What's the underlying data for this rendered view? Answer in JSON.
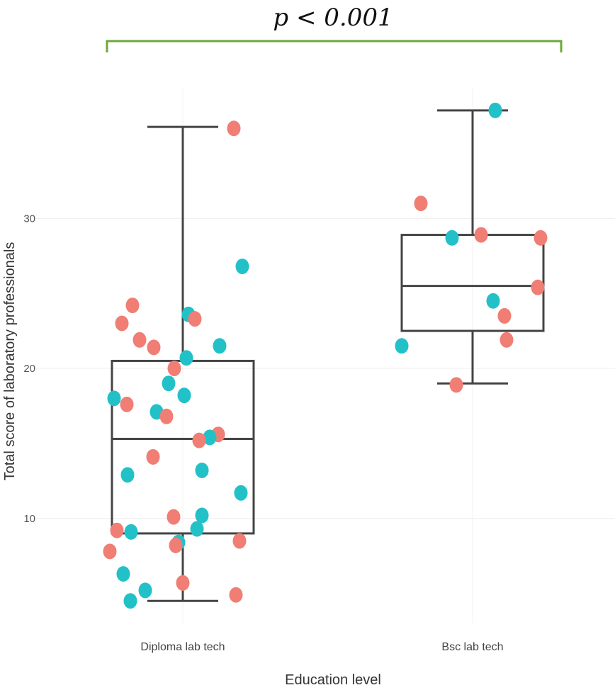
{
  "chart_data": {
    "type": "boxplot",
    "title": "",
    "xlabel": "Education level",
    "ylabel": "Total score of laboratory professionals",
    "ylim": [
      3,
      39.6
    ],
    "yticks": [
      10,
      20,
      30
    ],
    "grid": true,
    "significance": {
      "label": "p < 0.001",
      "color": "#6aaa3a"
    },
    "point_colors": {
      "red": "#f07e74",
      "teal": "#22c1c7"
    },
    "box_color": "#444444",
    "categories": [
      "Diploma lab tech",
      "Bsc lab tech"
    ],
    "boxes": [
      {
        "category": "Diploma lab tech",
        "whisker_low": 4.5,
        "q1": 9.0,
        "median": 15.3,
        "q3": 20.5,
        "whisker_high": 36.1
      },
      {
        "category": "Bsc lab tech",
        "whisker_low": 19.0,
        "q1": 22.5,
        "median": 25.5,
        "q3": 28.9,
        "whisker_high": 37.2
      }
    ],
    "points": [
      {
        "category": "Diploma lab tech",
        "offset": 0.72,
        "y": 36.0,
        "color": "red"
      },
      {
        "category": "Diploma lab tech",
        "offset": 0.84,
        "y": 26.8,
        "color": "teal"
      },
      {
        "category": "Diploma lab tech",
        "offset": -0.71,
        "y": 24.2,
        "color": "red"
      },
      {
        "category": "Diploma lab tech",
        "offset": -0.86,
        "y": 23.0,
        "color": "red"
      },
      {
        "category": "Diploma lab tech",
        "offset": 0.08,
        "y": 23.6,
        "color": "teal"
      },
      {
        "category": "Diploma lab tech",
        "offset": 0.17,
        "y": 23.3,
        "color": "red"
      },
      {
        "category": "Diploma lab tech",
        "offset": -0.61,
        "y": 21.9,
        "color": "red"
      },
      {
        "category": "Diploma lab tech",
        "offset": -0.41,
        "y": 21.4,
        "color": "red"
      },
      {
        "category": "Diploma lab tech",
        "offset": 0.52,
        "y": 21.5,
        "color": "teal"
      },
      {
        "category": "Diploma lab tech",
        "offset": 0.05,
        "y": 20.7,
        "color": "teal"
      },
      {
        "category": "Diploma lab tech",
        "offset": -0.12,
        "y": 20.0,
        "color": "red"
      },
      {
        "category": "Diploma lab tech",
        "offset": -0.2,
        "y": 19.0,
        "color": "teal"
      },
      {
        "category": "Diploma lab tech",
        "offset": 0.02,
        "y": 18.2,
        "color": "teal"
      },
      {
        "category": "Diploma lab tech",
        "offset": -0.97,
        "y": 18.0,
        "color": "teal"
      },
      {
        "category": "Diploma lab tech",
        "offset": -0.79,
        "y": 17.6,
        "color": "red"
      },
      {
        "category": "Diploma lab tech",
        "offset": -0.37,
        "y": 17.1,
        "color": "teal"
      },
      {
        "category": "Diploma lab tech",
        "offset": -0.23,
        "y": 16.8,
        "color": "red"
      },
      {
        "category": "Diploma lab tech",
        "offset": 0.5,
        "y": 15.6,
        "color": "red"
      },
      {
        "category": "Diploma lab tech",
        "offset": 0.38,
        "y": 15.4,
        "color": "teal"
      },
      {
        "category": "Diploma lab tech",
        "offset": 0.23,
        "y": 15.2,
        "color": "red"
      },
      {
        "category": "Diploma lab tech",
        "offset": -0.42,
        "y": 14.1,
        "color": "red"
      },
      {
        "category": "Diploma lab tech",
        "offset": 0.27,
        "y": 13.2,
        "color": "teal"
      },
      {
        "category": "Diploma lab tech",
        "offset": -0.78,
        "y": 12.9,
        "color": "teal"
      },
      {
        "category": "Diploma lab tech",
        "offset": 0.82,
        "y": 11.7,
        "color": "teal"
      },
      {
        "category": "Diploma lab tech",
        "offset": 0.27,
        "y": 10.2,
        "color": "teal"
      },
      {
        "category": "Diploma lab tech",
        "offset": -0.13,
        "y": 10.1,
        "color": "red"
      },
      {
        "category": "Diploma lab tech",
        "offset": 0.2,
        "y": 9.3,
        "color": "teal"
      },
      {
        "category": "Diploma lab tech",
        "offset": -0.93,
        "y": 9.2,
        "color": "red"
      },
      {
        "category": "Diploma lab tech",
        "offset": -0.73,
        "y": 9.1,
        "color": "teal"
      },
      {
        "category": "Diploma lab tech",
        "offset": 0.8,
        "y": 8.5,
        "color": "red"
      },
      {
        "category": "Diploma lab tech",
        "offset": -0.06,
        "y": 8.4,
        "color": "teal"
      },
      {
        "category": "Diploma lab tech",
        "offset": -0.1,
        "y": 8.2,
        "color": "red"
      },
      {
        "category": "Diploma lab tech",
        "offset": -1.03,
        "y": 7.8,
        "color": "red"
      },
      {
        "category": "Diploma lab tech",
        "offset": -0.84,
        "y": 6.3,
        "color": "teal"
      },
      {
        "category": "Diploma lab tech",
        "offset": 0.0,
        "y": 5.7,
        "color": "red"
      },
      {
        "category": "Diploma lab tech",
        "offset": -0.53,
        "y": 5.2,
        "color": "teal"
      },
      {
        "category": "Diploma lab tech",
        "offset": 0.75,
        "y": 4.9,
        "color": "red"
      },
      {
        "category": "Diploma lab tech",
        "offset": -0.74,
        "y": 4.5,
        "color": "teal"
      },
      {
        "category": "Bsc lab tech",
        "offset": 0.32,
        "y": 37.2,
        "color": "teal"
      },
      {
        "category": "Bsc lab tech",
        "offset": -0.73,
        "y": 31.0,
        "color": "red"
      },
      {
        "category": "Bsc lab tech",
        "offset": 0.12,
        "y": 28.9,
        "color": "red"
      },
      {
        "category": "Bsc lab tech",
        "offset": -0.29,
        "y": 28.7,
        "color": "teal"
      },
      {
        "category": "Bsc lab tech",
        "offset": 0.96,
        "y": 28.7,
        "color": "red"
      },
      {
        "category": "Bsc lab tech",
        "offset": 0.92,
        "y": 25.4,
        "color": "red"
      },
      {
        "category": "Bsc lab tech",
        "offset": 0.29,
        "y": 24.5,
        "color": "teal"
      },
      {
        "category": "Bsc lab tech",
        "offset": 0.45,
        "y": 23.5,
        "color": "red"
      },
      {
        "category": "Bsc lab tech",
        "offset": 0.48,
        "y": 21.9,
        "color": "red"
      },
      {
        "category": "Bsc lab tech",
        "offset": -1.0,
        "y": 21.5,
        "color": "teal"
      },
      {
        "category": "Bsc lab tech",
        "offset": -0.23,
        "y": 18.9,
        "color": "red"
      }
    ]
  }
}
